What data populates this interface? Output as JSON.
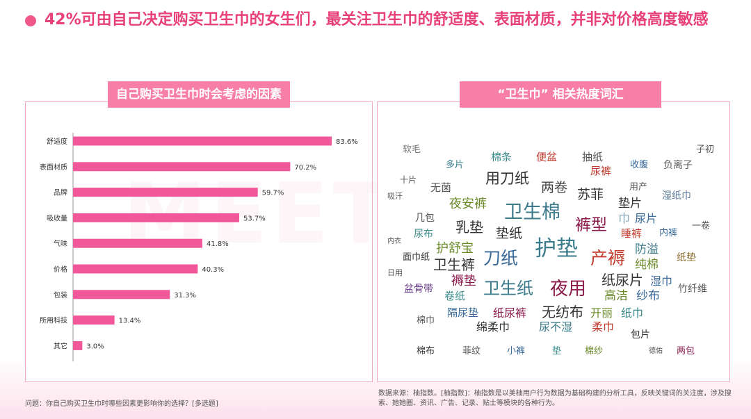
{
  "headline": "42%可由自己决定购买卫生巾的女生们，最关注卫生巾的舒适度、表面材质，并非对价格高度敏感",
  "left_panel": {
    "title": "自己购买卫生巾时会考虑的因素",
    "watermark": "MEET"
  },
  "right_panel": {
    "title": "“卫生巾” 相关热度词汇"
  },
  "chart_data": {
    "type": "bar",
    "orientation": "horizontal",
    "categories": [
      "舒适度",
      "表面材质",
      "品牌",
      "吸收量",
      "气味",
      "价格",
      "包装",
      "所用科技",
      "其它"
    ],
    "values": [
      83.6,
      70.2,
      59.7,
      53.7,
      41.8,
      40.3,
      31.3,
      13.4,
      3.0
    ],
    "value_labels": [
      "83.6%",
      "70.2%",
      "59.7%",
      "53.7%",
      "41.8%",
      "40.3%",
      "31.3%",
      "13.4%",
      "3.0%"
    ],
    "xlim": [
      0,
      100
    ],
    "bar_color": "#f0589a"
  },
  "word_cloud": [
    {
      "t": "软毛",
      "c": "#777"
    },
    {
      "t": "棉条",
      "c": "#3a8a8a"
    },
    {
      "t": "便盆",
      "c": "#c0392b"
    },
    {
      "t": "抽纸",
      "c": "#555"
    },
    {
      "t": "子初",
      "c": "#555"
    },
    {
      "t": "多片",
      "c": "#3a7a8a"
    },
    {
      "t": "尿裤",
      "c": "#c0392b"
    },
    {
      "t": "收腹",
      "c": "#3a6a9a"
    },
    {
      "t": "负离子",
      "c": "#555"
    },
    {
      "t": "十片",
      "c": "#555"
    },
    {
      "t": "用刀纸",
      "c": "#333"
    },
    {
      "t": "两卷",
      "c": "#444"
    },
    {
      "t": "苏菲",
      "c": "#333"
    },
    {
      "t": "无菌",
      "c": "#555"
    },
    {
      "t": "用产",
      "c": "#555"
    },
    {
      "t": "湿纸巾",
      "c": "#5a7a9a"
    },
    {
      "t": "吸汗",
      "c": "#555"
    },
    {
      "t": "夜安裤",
      "c": "#6a8a2a"
    },
    {
      "t": "卫生棉",
      "c": "#3a7a8a"
    },
    {
      "t": "垫片",
      "c": "#333"
    },
    {
      "t": "巾",
      "c": "#8ab"
    },
    {
      "t": "尿片",
      "c": "#3a6a9a"
    },
    {
      "t": "几包",
      "c": "#555"
    },
    {
      "t": "乳垫",
      "c": "#333"
    },
    {
      "t": "裤型",
      "c": "#8a1a4a"
    },
    {
      "t": "睡裤",
      "c": "#c0392b"
    },
    {
      "t": "内裤",
      "c": "#3a6a9a"
    },
    {
      "t": "一卷",
      "c": "#555"
    },
    {
      "t": "尿布",
      "c": "#3a8a8a"
    },
    {
      "t": "垫纸",
      "c": "#333"
    },
    {
      "t": "内衣",
      "c": "#555"
    },
    {
      "t": "护舒宝",
      "c": "#6a8a2a"
    },
    {
      "t": "护垫",
      "c": "#3a7a8a"
    },
    {
      "t": "防溢",
      "c": "#3a7a8a"
    },
    {
      "t": "面巾纸",
      "c": "#333"
    },
    {
      "t": "刀纸",
      "c": "#3a6a9a"
    },
    {
      "t": "产褥",
      "c": "#c0392b"
    },
    {
      "t": "纯棉",
      "c": "#6a8a2a"
    },
    {
      "t": "纸垫",
      "c": "#8a6a2a"
    },
    {
      "t": "卫生裤",
      "c": "#333"
    },
    {
      "t": "日用",
      "c": "#555"
    },
    {
      "t": "褥垫",
      "c": "#8a1a4a"
    },
    {
      "t": "纸尿片",
      "c": "#333"
    },
    {
      "t": "湿巾",
      "c": "#3a6a9a"
    },
    {
      "t": "盆骨带",
      "c": "#6a3a8a"
    },
    {
      "t": "卫生纸",
      "c": "#3a7a8a"
    },
    {
      "t": "夜用",
      "c": "#8a1a4a"
    },
    {
      "t": "竹纤维",
      "c": "#555"
    },
    {
      "t": "卷纸",
      "c": "#3a8a8a"
    },
    {
      "t": "高洁",
      "c": "#6a8a2a"
    },
    {
      "t": "纱布",
      "c": "#3a6a9a"
    },
    {
      "t": "隔尿垫",
      "c": "#3a6a9a"
    },
    {
      "t": "纸尿裤",
      "c": "#8a1a4a"
    },
    {
      "t": "无纺布",
      "c": "#333"
    },
    {
      "t": "开丽",
      "c": "#6a8a2a"
    },
    {
      "t": "纸巾",
      "c": "#3a8a8a"
    },
    {
      "t": "棉巾",
      "c": "#555"
    },
    {
      "t": "绵柔巾",
      "c": "#333"
    },
    {
      "t": "尿不湿",
      "c": "#3a7a8a"
    },
    {
      "t": "柔巾",
      "c": "#c0392b"
    },
    {
      "t": "包片",
      "c": "#333"
    },
    {
      "t": "棉布",
      "c": "#333"
    },
    {
      "t": "菲纹",
      "c": "#555"
    },
    {
      "t": "小裤",
      "c": "#3a6a9a"
    },
    {
      "t": "垫",
      "c": "#3a8a8a"
    },
    {
      "t": "棉纱",
      "c": "#6a8a2a"
    },
    {
      "t": "德佑",
      "c": "#555"
    },
    {
      "t": "两包",
      "c": "#8a1a4a"
    }
  ],
  "footnote_left": "问题：你自己购买卫生巾时哪些因素更影响你的选择？[多选题]",
  "footnote_right": "数据来源：柚指数。[柚指数]：柚指数是以美柚用户行为数据为基础构建的分析工具，反映关键词的关注度，涉及搜索、她她圈、资讯、广告、记录、贴士等模块的各种行为。"
}
